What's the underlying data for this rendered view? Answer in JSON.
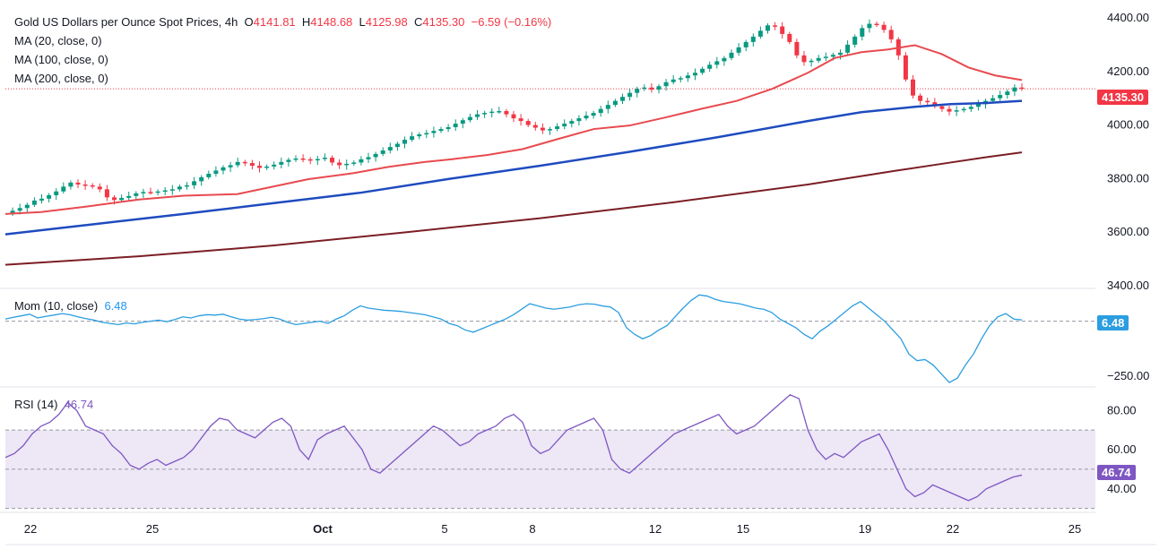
{
  "header": {
    "symbol": "Gold US Dollars per Ounce Spot Prices",
    "interval": "4h",
    "o_label": "O",
    "o_value": "4141.81",
    "h_label": "H",
    "h_value": "4148.68",
    "l_label": "L",
    "l_value": "4125.98",
    "c_label": "C",
    "c_value": "4135.30",
    "change": "−6.59 (−0.16%)"
  },
  "ma_legend": [
    "MA (20, close, 0)",
    "MA (100, close, 0)",
    "MA (200, close, 0)"
  ],
  "mom_legend": {
    "label": "Mom (10, close)",
    "value": "6.48"
  },
  "rsi_legend": {
    "label": "RSI (14)",
    "value": "46.74"
  },
  "price_tag": "4135.30",
  "mom_tag": "6.48",
  "rsi_tag": "46.74",
  "colors": {
    "up": "#089981",
    "down": "#f23645",
    "ma20": "#e84a4f",
    "ma100": "#1e4bbf",
    "ma200": "#7b1e24",
    "mom": "#2b9de0",
    "rsi": "#7e57c2",
    "rsi_band": "#ede7f6"
  },
  "chart_data": [
    {
      "type": "candlestick",
      "title": "Gold US Dollars per Ounce Spot Prices",
      "interval": "4h",
      "x_ticks": [
        "22",
        "25",
        "Oct",
        "5",
        "8",
        "12",
        "15",
        "19",
        "22",
        "25"
      ],
      "y_ticks": [
        "3400.00",
        "3600.00",
        "3800.00",
        "4000.00",
        "4200.00",
        "4400.00"
      ],
      "ylim": [
        3390,
        4440
      ],
      "last_price": 4135.3,
      "close_series": [
        3672,
        3680,
        3690,
        3702,
        3718,
        3725,
        3738,
        3752,
        3770,
        3785,
        3778,
        3775,
        3770,
        3760,
        3730,
        3720,
        3728,
        3735,
        3745,
        3750,
        3748,
        3752,
        3756,
        3760,
        3770,
        3775,
        3790,
        3805,
        3818,
        3830,
        3842,
        3850,
        3862,
        3858,
        3848,
        3840,
        3845,
        3852,
        3862,
        3870,
        3875,
        3872,
        3868,
        3873,
        3878,
        3860,
        3850,
        3855,
        3860,
        3872,
        3880,
        3892,
        3905,
        3918,
        3930,
        3945,
        3958,
        3965,
        3970,
        3978,
        3985,
        3992,
        4005,
        4018,
        4030,
        4040,
        4045,
        4050,
        4052,
        4040,
        4025,
        4015,
        4000,
        3990,
        3980,
        3985,
        3995,
        4005,
        4015,
        4025,
        4035,
        4045,
        4060,
        4075,
        4090,
        4105,
        4120,
        4135,
        4140,
        4132,
        4145,
        4160,
        4170,
        4175,
        4185,
        4195,
        4210,
        4225,
        4238,
        4250,
        4270,
        4290,
        4310,
        4330,
        4352,
        4372,
        4368,
        4340,
        4310,
        4260,
        4235,
        4240,
        4250,
        4255,
        4262,
        4270,
        4300,
        4330,
        4362,
        4378,
        4374,
        4355,
        4320,
        4260,
        4170,
        4110,
        4090,
        4085,
        4070,
        4060,
        4050,
        4055,
        4060,
        4068,
        4078,
        4090,
        4100,
        4112,
        4125,
        4140,
        4135
      ],
      "ma20": [
        [
          0,
          3668
        ],
        [
          40,
          3675
        ],
        [
          90,
          3695
        ],
        [
          150,
          3722
        ],
        [
          200,
          3736
        ],
        [
          260,
          3742
        ],
        [
          300,
          3770
        ],
        [
          340,
          3798
        ],
        [
          390,
          3820
        ],
        [
          430,
          3844
        ],
        [
          470,
          3862
        ],
        [
          500,
          3872
        ],
        [
          540,
          3888
        ],
        [
          580,
          3910
        ],
        [
          620,
          3948
        ],
        [
          660,
          3985
        ],
        [
          700,
          3998
        ],
        [
          740,
          4028
        ],
        [
          780,
          4060
        ],
        [
          820,
          4090
        ],
        [
          860,
          4135
        ],
        [
          900,
          4195
        ],
        [
          930,
          4250
        ],
        [
          960,
          4272
        ],
        [
          990,
          4282
        ],
        [
          1020,
          4298
        ],
        [
          1050,
          4265
        ],
        [
          1080,
          4215
        ],
        [
          1110,
          4185
        ],
        [
          1140,
          4168
        ]
      ],
      "ma100": [
        [
          0,
          3592
        ],
        [
          100,
          3630
        ],
        [
          200,
          3668
        ],
        [
          300,
          3708
        ],
        [
          400,
          3748
        ],
        [
          500,
          3800
        ],
        [
          600,
          3848
        ],
        [
          700,
          3900
        ],
        [
          800,
          3955
        ],
        [
          900,
          4015
        ],
        [
          960,
          4048
        ],
        [
          1020,
          4068
        ],
        [
          1060,
          4078
        ],
        [
          1100,
          4082
        ],
        [
          1140,
          4090
        ]
      ],
      "ma200": [
        [
          0,
          3478
        ],
        [
          150,
          3510
        ],
        [
          300,
          3550
        ],
        [
          450,
          3600
        ],
        [
          600,
          3652
        ],
        [
          750,
          3712
        ],
        [
          900,
          3778
        ],
        [
          1000,
          3830
        ],
        [
          1060,
          3860
        ],
        [
          1100,
          3880
        ],
        [
          1140,
          3898
        ]
      ]
    },
    {
      "type": "line",
      "title": "Mom (10, close)",
      "y_ticks": [
        "−250.00"
      ],
      "last_value": 6.48,
      "ylim": [
        -300,
        150
      ],
      "series": [
        {
          "name": "Mom (10, close)",
          "values": [
            10,
            18,
            25,
            32,
            15,
            22,
            28,
            35,
            30,
            20,
            12,
            5,
            -5,
            -10,
            -15,
            -8,
            -12,
            -5,
            0,
            5,
            -2,
            8,
            20,
            15,
            25,
            30,
            28,
            32,
            20,
            10,
            5,
            8,
            12,
            18,
            10,
            -5,
            -15,
            -10,
            -5,
            0,
            -10,
            10,
            25,
            50,
            70,
            60,
            55,
            50,
            48,
            45,
            40,
            35,
            30,
            20,
            10,
            -10,
            -20,
            -40,
            -50,
            -35,
            -20,
            -5,
            10,
            30,
            55,
            80,
            70,
            60,
            55,
            60,
            65,
            75,
            80,
            78,
            70,
            65,
            40,
            -30,
            -60,
            -80,
            -65,
            -40,
            -20,
            20,
            60,
            95,
            120,
            115,
            100,
            90,
            85,
            80,
            70,
            60,
            55,
            40,
            10,
            -10,
            -30,
            -60,
            -80,
            -45,
            -20,
            10,
            40,
            70,
            90,
            60,
            30,
            0,
            -40,
            -80,
            -150,
            -180,
            -175,
            -200,
            -240,
            -280,
            -260,
            -200,
            -150,
            -80,
            -20,
            20,
            35,
            10,
            6
          ]
        }
      ]
    },
    {
      "type": "line",
      "title": "RSI (14)",
      "y_ticks": [
        "40.00",
        "60.00",
        "80.00"
      ],
      "ylim": [
        28,
        92
      ],
      "band": [
        30,
        70
      ],
      "last_value": 46.74,
      "series": [
        {
          "name": "RSI (14)",
          "values": [
            56,
            58,
            62,
            68,
            72,
            74,
            78,
            84,
            80,
            72,
            70,
            68,
            62,
            58,
            52,
            50,
            53,
            55,
            52,
            54,
            56,
            60,
            66,
            72,
            76,
            75,
            70,
            68,
            66,
            70,
            74,
            76,
            72,
            60,
            55,
            65,
            68,
            70,
            72,
            66,
            60,
            50,
            48,
            52,
            56,
            60,
            64,
            68,
            72,
            70,
            66,
            62,
            64,
            68,
            70,
            72,
            76,
            78,
            74,
            62,
            58,
            60,
            65,
            70,
            72,
            74,
            76,
            70,
            55,
            50,
            48,
            52,
            56,
            60,
            64,
            68,
            70,
            72,
            74,
            76,
            78,
            72,
            68,
            70,
            72,
            76,
            80,
            84,
            88,
            86,
            70,
            60,
            55,
            58,
            56,
            60,
            64,
            66,
            68,
            60,
            50,
            40,
            36,
            38,
            42,
            40,
            38,
            36,
            34,
            36,
            40,
            42,
            44,
            46,
            47
          ]
        }
      ]
    }
  ]
}
